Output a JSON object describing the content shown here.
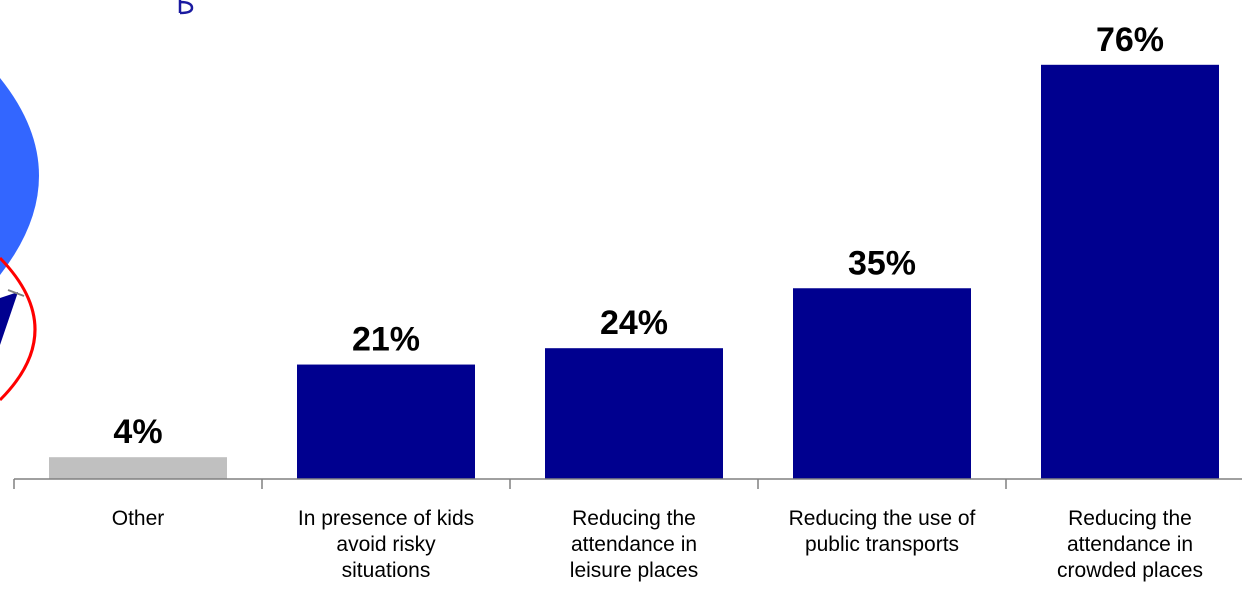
{
  "chart_data": {
    "type": "bar",
    "categories": [
      "Other",
      "In presence of kids avoid risky situations",
      "Reducing the attendance in leisure places",
      "Reducing the use of public transports",
      "Reducing the attendance in crowded places"
    ],
    "category_lines": [
      [
        "Other"
      ],
      [
        "In presence of kids",
        "avoid risky",
        "situations"
      ],
      [
        "Reducing the",
        "attendance in",
        "leisure places"
      ],
      [
        "Reducing the use of",
        "public transports"
      ],
      [
        "Reducing the",
        "attendance in",
        "crowded places"
      ]
    ],
    "values": [
      4,
      21,
      24,
      35,
      76
    ],
    "value_labels": [
      "4%",
      "21%",
      "24%",
      "35%",
      "76%"
    ],
    "unit": "%",
    "bar_colors": [
      "#c0c0c0",
      "#00008f",
      "#00008f",
      "#00008f",
      "#00008f"
    ],
    "ylim": [
      0,
      80
    ],
    "grid": false,
    "title": "",
    "xlabel": "",
    "ylabel": ""
  },
  "colors": {
    "primary_bar": "#00008f",
    "other_bar": "#c0c0c0",
    "axis": "#808080",
    "decor_blue": "#3366ff",
    "decor_navy": "#00008f",
    "decor_red": "#ff0000",
    "decor_title": "#1a1aa0"
  }
}
